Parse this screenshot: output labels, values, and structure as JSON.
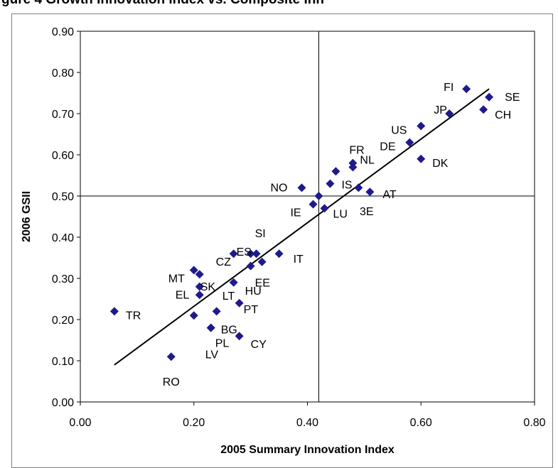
{
  "figure_title": "gure 4 Growth Innovation Index vs. Composite Inn",
  "chart_data": {
    "type": "scatter",
    "title": "",
    "xlabel": "2005 Summary Innovation Index",
    "ylabel": "2006 GSII",
    "xlim": [
      0.0,
      0.8
    ],
    "ylim": [
      0.0,
      0.9
    ],
    "x_ticks": [
      "0.00",
      "0.20",
      "0.40",
      "0.60",
      "0.80"
    ],
    "y_ticks": [
      "0.00",
      "0.10",
      "0.20",
      "0.30",
      "0.40",
      "0.50",
      "0.60",
      "0.70",
      "0.80",
      "0.90"
    ],
    "quadrant_lines": {
      "x": 0.42,
      "y": 0.5
    },
    "grid": false,
    "marker_color": "#1f1a8c",
    "trendline": {
      "x": [
        0.06,
        0.72
      ],
      "y": [
        0.09,
        0.76
      ]
    },
    "points": [
      {
        "label": "FI",
        "x": 0.68,
        "y": 0.76
      },
      {
        "label": "SE",
        "x": 0.72,
        "y": 0.74
      },
      {
        "label": "CH",
        "x": 0.71,
        "y": 0.71
      },
      {
        "label": "JP",
        "x": 0.65,
        "y": 0.7
      },
      {
        "label": "US",
        "x": 0.6,
        "y": 0.67
      },
      {
        "label": "DE",
        "x": 0.58,
        "y": 0.63
      },
      {
        "label": "DK",
        "x": 0.6,
        "y": 0.59
      },
      {
        "label": "FR",
        "x": 0.48,
        "y": 0.58
      },
      {
        "label": "NL",
        "x": 0.48,
        "y": 0.57
      },
      {
        "label": "",
        "x": 0.45,
        "y": 0.56
      },
      {
        "label": "IS",
        "x": 0.44,
        "y": 0.53
      },
      {
        "label": "",
        "x": 0.49,
        "y": 0.52
      },
      {
        "label": "AT",
        "x": 0.51,
        "y": 0.51
      },
      {
        "label": "NO",
        "x": 0.39,
        "y": 0.52
      },
      {
        "label": "",
        "x": 0.42,
        "y": 0.5
      },
      {
        "label": "IE",
        "x": 0.41,
        "y": 0.48
      },
      {
        "label": "LU",
        "x": 0.43,
        "y": 0.47
      },
      {
        "label": "SI",
        "x": 0.31,
        "y": 0.36
      },
      {
        "label": "ES",
        "x": 0.3,
        "y": 0.36
      },
      {
        "label": "",
        "x": 0.32,
        "y": 0.34
      },
      {
        "label": "EE",
        "x": 0.3,
        "y": 0.33
      },
      {
        "label": "IT",
        "x": 0.35,
        "y": 0.36
      },
      {
        "label": "CZ",
        "x": 0.27,
        "y": 0.36
      },
      {
        "label": "MT",
        "x": 0.2,
        "y": 0.32
      },
      {
        "label": "SK",
        "x": 0.21,
        "y": 0.31
      },
      {
        "label": "EL",
        "x": 0.21,
        "y": 0.28
      },
      {
        "label": "LT",
        "x": 0.21,
        "y": 0.26
      },
      {
        "label": "HU",
        "x": 0.27,
        "y": 0.29
      },
      {
        "label": "PT",
        "x": 0.28,
        "y": 0.24
      },
      {
        "label": "BG",
        "x": 0.24,
        "y": 0.22
      },
      {
        "label": "",
        "x": 0.2,
        "y": 0.21
      },
      {
        "label": "LV",
        "x": 0.23,
        "y": 0.18
      },
      {
        "label": "PL",
        "x": 0.23,
        "y": 0.18
      },
      {
        "label": "CY",
        "x": 0.28,
        "y": 0.16
      },
      {
        "label": "TR",
        "x": 0.06,
        "y": 0.22
      },
      {
        "label": "RO",
        "x": 0.16,
        "y": 0.11
      }
    ]
  },
  "labels_extra": [
    "3E"
  ]
}
